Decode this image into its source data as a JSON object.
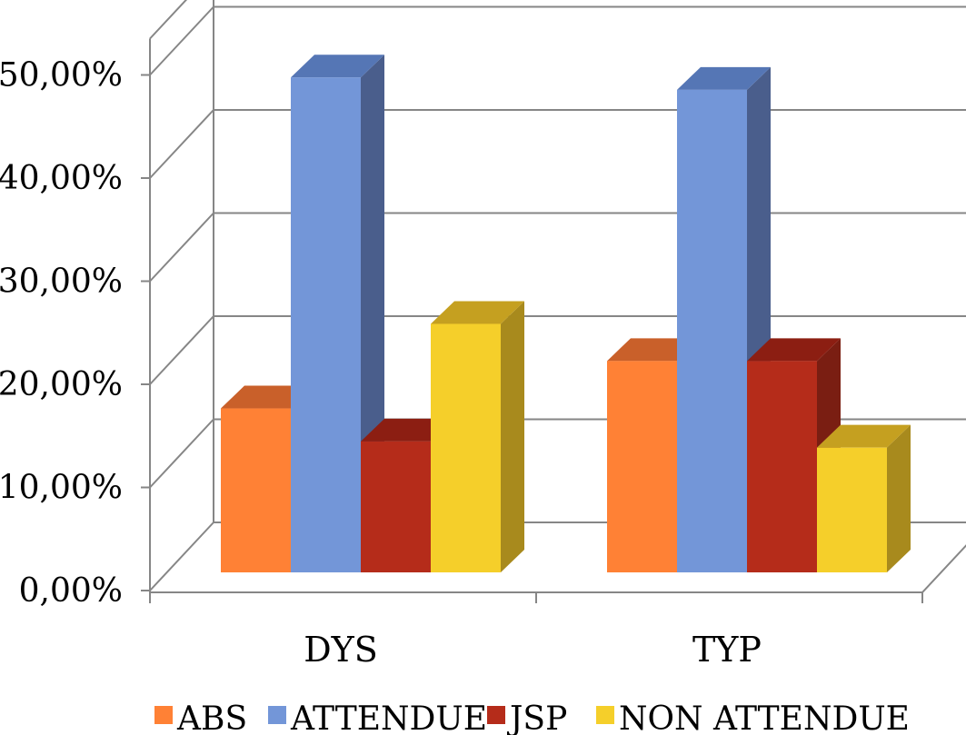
{
  "chart_data": {
    "type": "bar",
    "style": "3d-clustered-column",
    "categories": [
      "DYS",
      "TYP"
    ],
    "series": [
      {
        "name": "ABS",
        "values": [
          15.9,
          20.5
        ],
        "color": "#FF8135",
        "top_color": "#C9602A",
        "side_color": "#B35020"
      },
      {
        "name": "ATTENDUE",
        "values": [
          48.0,
          46.8
        ],
        "color": "#7396D8",
        "top_color": "#5576B5",
        "side_color": "#4A5E8C"
      },
      {
        "name": "JSP",
        "values": [
          12.7,
          20.5
        ],
        "color": "#B52C1A",
        "top_color": "#8C1E12",
        "side_color": "#7A1E12"
      },
      {
        "name": "NON ATTENDUE",
        "values": [
          24.1,
          12.1
        ],
        "color": "#F5CF2A",
        "top_color": "#C5A020",
        "side_color": "#A88A1D"
      }
    ],
    "ylim": [
      0,
      50
    ],
    "yticks": [
      "0,00%",
      "10,00%",
      "20,00%",
      "30,00%",
      "40,00%",
      "50,00%"
    ],
    "grid": true,
    "legend_position": "bottom"
  }
}
